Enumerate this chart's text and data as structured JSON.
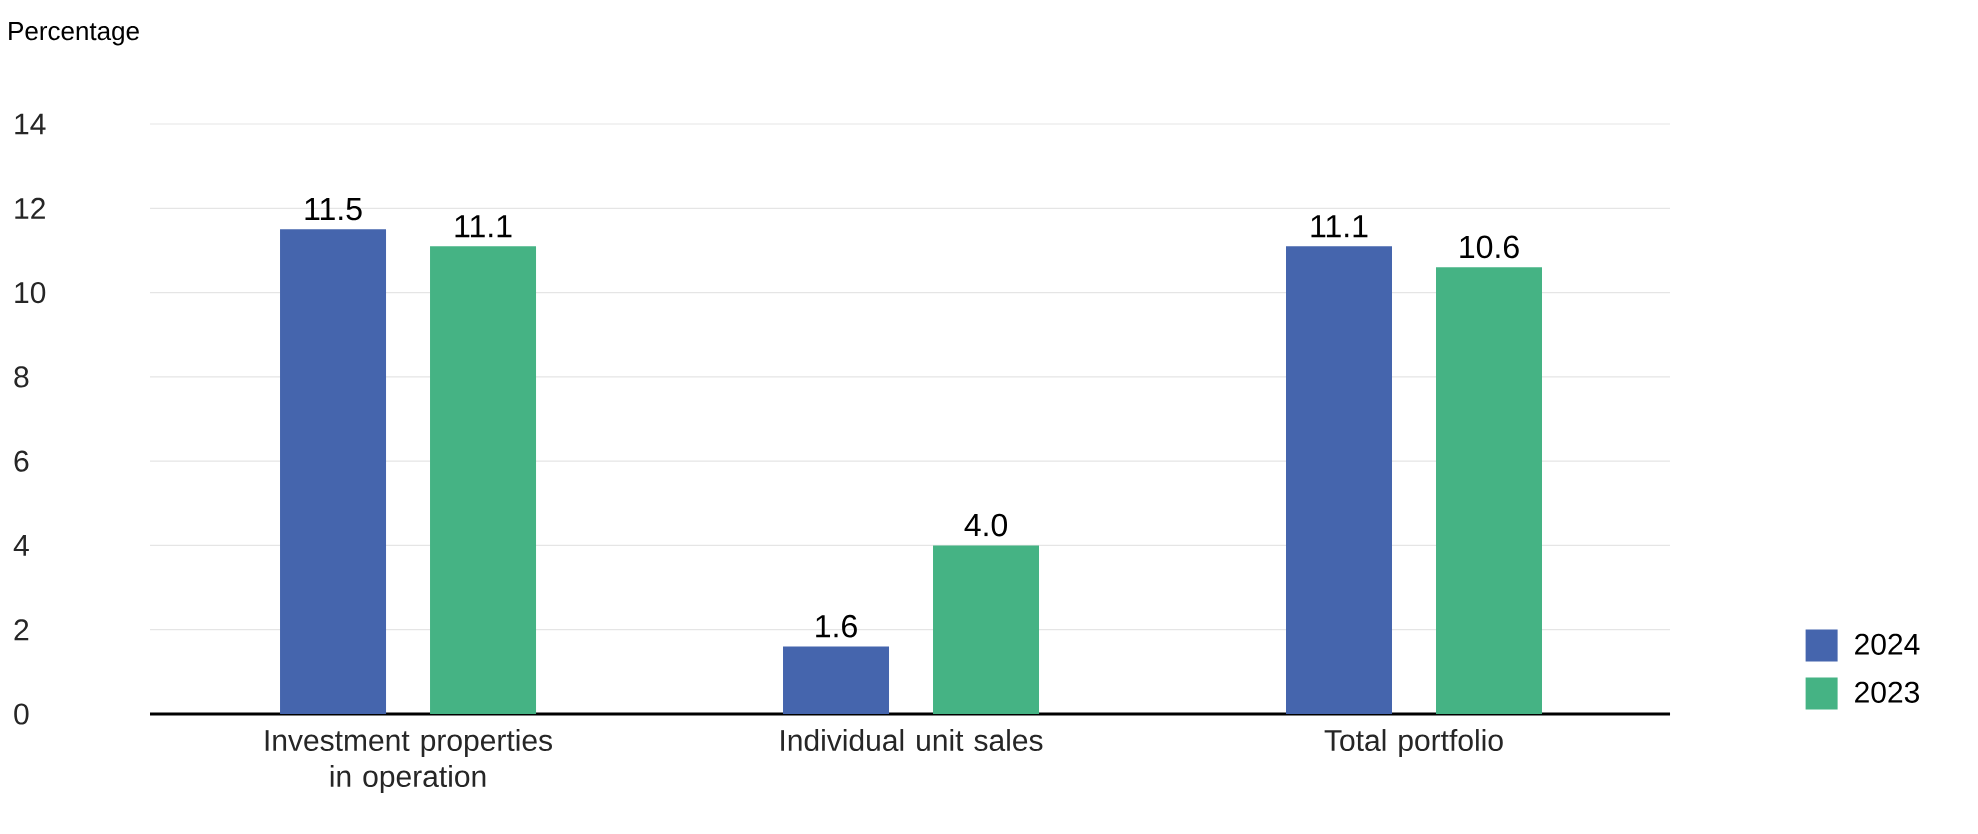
{
  "chart_data": {
    "type": "bar",
    "ylabel": "Percentage",
    "categories": [
      "Investment properties in operation",
      "Individual unit sales",
      "Total portfolio"
    ],
    "series": [
      {
        "name": "2024",
        "color": "#4565ad",
        "values": [
          11.5,
          1.6,
          11.1
        ],
        "value_labels": [
          "11.5",
          "1.6",
          "11.1"
        ]
      },
      {
        "name": "2023",
        "color": "#45b384",
        "values": [
          11.1,
          4.0,
          10.6
        ],
        "value_labels": [
          "11.1",
          "4.0",
          "10.6"
        ]
      }
    ],
    "ylim": [
      0,
      14
    ],
    "yticks": [
      0,
      2,
      4,
      6,
      8,
      10,
      12,
      14
    ],
    "grid": "y",
    "legend": "bottom right"
  }
}
